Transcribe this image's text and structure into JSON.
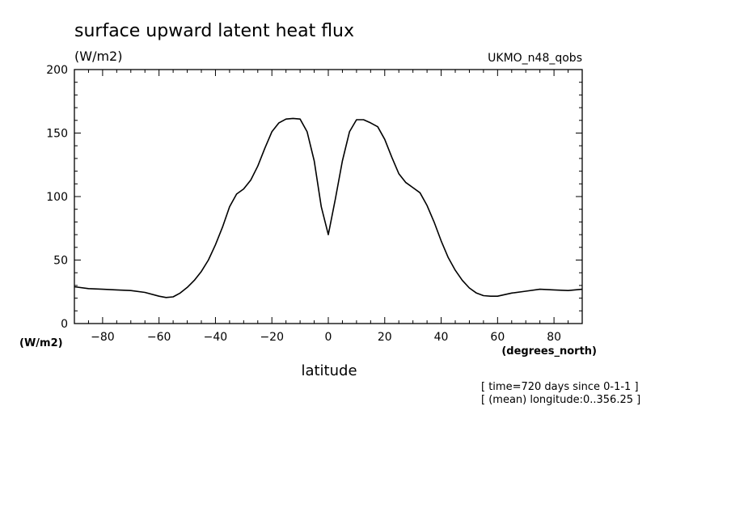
{
  "title": "surface upward latent heat flux",
  "units": "(W/m2)",
  "dataset": "UKMO_n48_qobs",
  "y_unit_label": "(W/m2)",
  "x_unit_label": "(degrees_north)",
  "notes": [
    "[ time=720 days since 0-1-1 ]",
    "[ (mean) longitude:0..356.25 ]"
  ],
  "chart_data": {
    "type": "line",
    "title": "surface upward latent heat flux",
    "xlabel": "latitude",
    "ylabel": "(W/m2)",
    "xlim": [
      -90,
      90
    ],
    "ylim": [
      0,
      200
    ],
    "x_ticks": [
      -80,
      -60,
      -40,
      -20,
      0,
      20,
      40,
      60,
      80
    ],
    "y_ticks": [
      0,
      50,
      100,
      150,
      200
    ],
    "grid": false,
    "series": [
      {
        "x": [
          -90,
          -85,
          -80,
          -75,
          -70,
          -65,
          -60,
          -57.5,
          -55,
          -52.5,
          -50,
          -47.5,
          -45,
          -42.5,
          -40,
          -37.5,
          -35,
          -32.5,
          -30,
          -27.5,
          -25,
          -22.5,
          -20,
          -17.5,
          -15,
          -12.5,
          -10,
          -7.5,
          -5,
          -2.5,
          0,
          2.5,
          5,
          7.5,
          10,
          12.5,
          15,
          17.5,
          20,
          22.5,
          25,
          27.5,
          30,
          32.5,
          35,
          37.5,
          40,
          42.5,
          45,
          47.5,
          50,
          52.5,
          55,
          57.5,
          60,
          65,
          70,
          75,
          80,
          85,
          90
        ],
        "y": [
          29,
          27.5,
          27,
          26.5,
          26,
          24.5,
          21.5,
          20.5,
          21,
          24,
          28.5,
          34,
          41,
          50,
          62,
          76,
          92,
          102,
          106,
          113,
          124,
          138,
          151,
          158,
          161,
          161.5,
          161,
          151,
          128,
          92,
          70,
          98,
          128,
          151,
          160.5,
          160.5,
          158,
          155,
          145,
          131,
          118,
          111,
          107,
          103,
          93,
          80,
          65,
          52,
          42,
          34,
          28,
          24,
          22,
          21.5,
          21.5,
          24,
          25.5,
          27,
          26.5,
          26,
          27
        ]
      }
    ]
  }
}
